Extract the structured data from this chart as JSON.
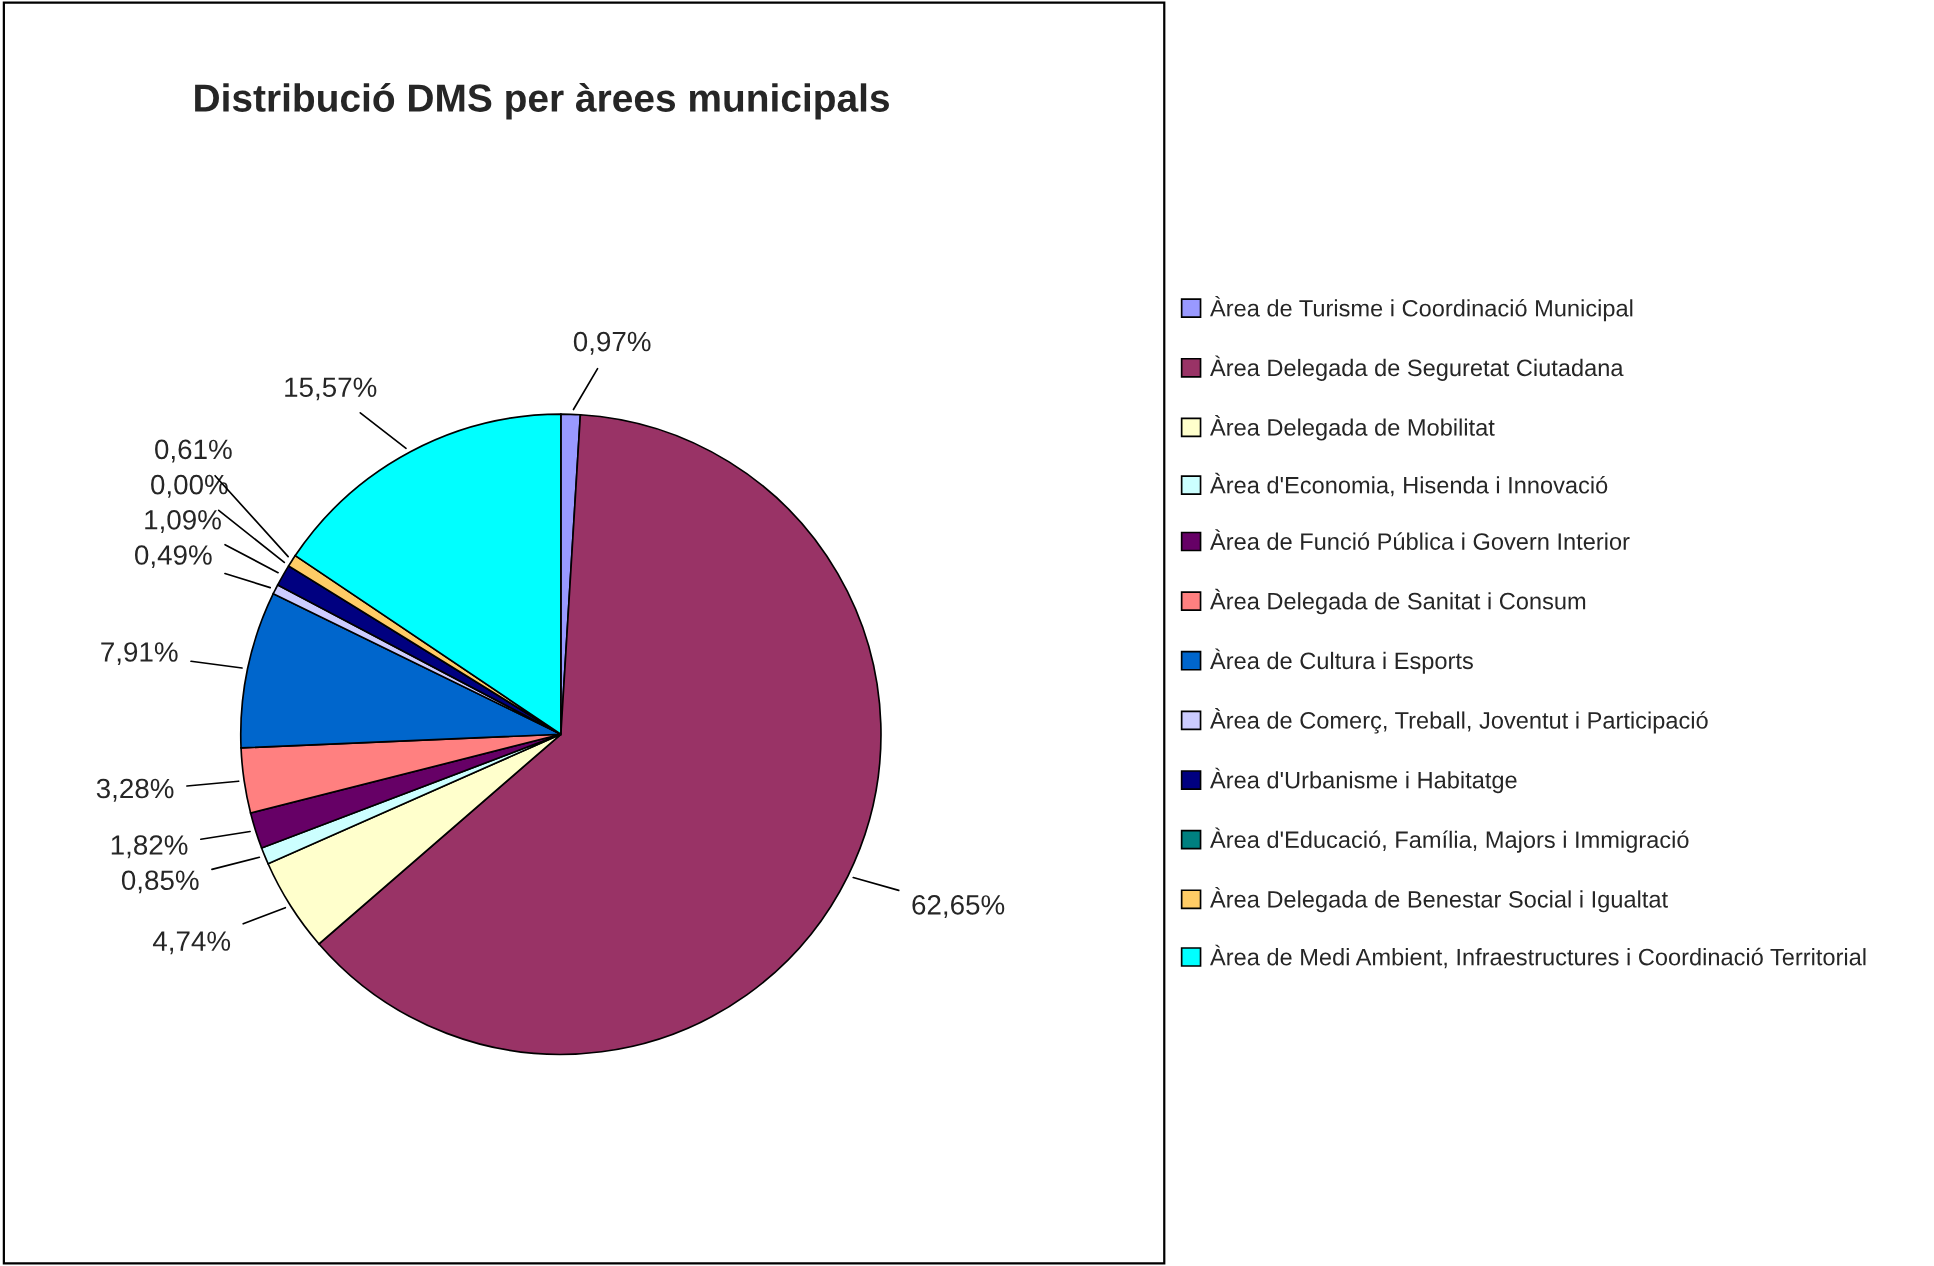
{
  "chart_data": {
    "type": "pie",
    "title": "Distribució DMS per àrees municipals",
    "categories": [
      "Àrea de Turisme i Coordinació Municipal",
      "Àrea Delegada de Seguretat Ciutadana",
      "Àrea Delegada de Mobilitat",
      "Àrea d'Economia, Hisenda i Innovació",
      "Àrea de Funció Pública i Govern Interior",
      "Àrea Delegada de Sanitat i Consum",
      "Àrea de Cultura i Esports",
      "Àrea de Comerç, Treball, Joventut i Participació",
      "Àrea d'Urbanisme i Habitatge",
      "Àrea d'Educació, Família, Majors i Immigració",
      "Àrea Delegada de Benestar Social i Igualtat",
      "Àrea de Medi Ambient, Infraestructures i Coordinació Territorial"
    ],
    "values": [
      0.97,
      62.65,
      4.74,
      0.85,
      1.82,
      3.28,
      7.91,
      0.49,
      1.09,
      0.0,
      0.61,
      15.57
    ],
    "value_labels": [
      "0,97%",
      "62,65%",
      "4,74%",
      "0,85%",
      "1,82%",
      "3,28%",
      "7,91%",
      "0,49%",
      "1,09%",
      "0,00%",
      "0,61%",
      "15,57%"
    ],
    "colors": [
      "#9999ff",
      "#993366",
      "#ffffcc",
      "#ccffff",
      "#660066",
      "#ff8080",
      "#0066cc",
      "#ccccff",
      "#000080",
      "#008080",
      "#ffcc66",
      "#00ffff"
    ],
    "legend": "right"
  }
}
